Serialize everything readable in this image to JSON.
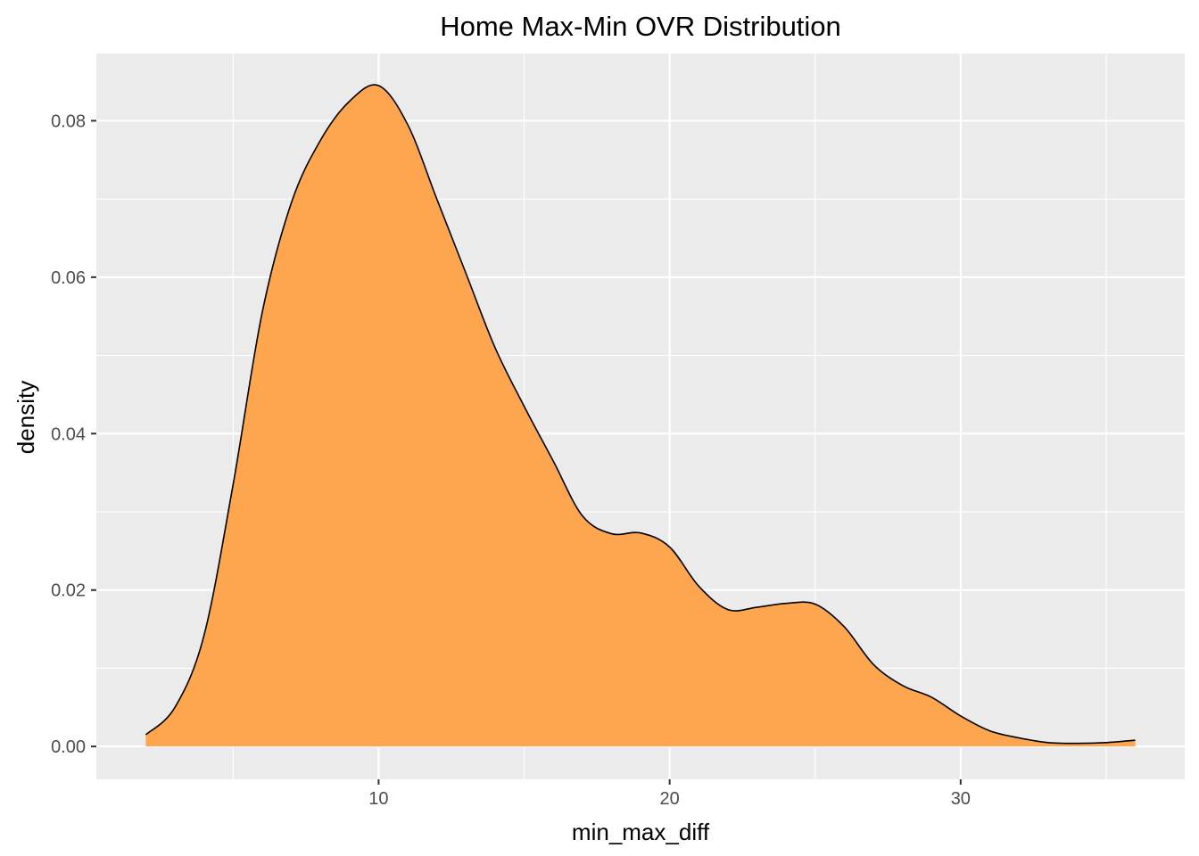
{
  "chart_data": {
    "type": "area",
    "title": "Home Max-Min OVR Distribution",
    "xlabel": "min_max_diff",
    "ylabel": "density",
    "xlim": [
      0.3,
      37.7
    ],
    "ylim": [
      -0.0042,
      0.0886
    ],
    "x_ticks": [
      10,
      20,
      30
    ],
    "x_tick_labels": [
      "10",
      "20",
      "30"
    ],
    "y_ticks": [
      0.0,
      0.02,
      0.04,
      0.06,
      0.08
    ],
    "y_tick_labels": [
      "0.00",
      "0.02",
      "0.04",
      "0.06",
      "0.08"
    ],
    "grid": true,
    "legend": "none",
    "fill_color": "#FDA54F",
    "line_color": "#000000",
    "panel_color": "#EBEBEB",
    "series": [
      {
        "x": [
          2,
          3,
          4,
          5,
          6,
          7,
          8,
          9,
          10,
          11,
          12,
          13,
          14,
          15,
          16,
          17,
          18,
          19,
          20,
          21,
          22,
          23,
          24,
          25,
          26,
          27,
          28,
          29,
          30,
          31,
          32,
          33,
          34,
          35,
          36
        ],
        "values": [
          0.0015,
          0.005,
          0.0142,
          0.0335,
          0.0555,
          0.0695,
          0.0775,
          0.0825,
          0.0845,
          0.0795,
          0.07,
          0.0605,
          0.051,
          0.0435,
          0.0365,
          0.0295,
          0.0272,
          0.0273,
          0.0255,
          0.0205,
          0.0175,
          0.0178,
          0.0183,
          0.0182,
          0.0153,
          0.0105,
          0.0078,
          0.0063,
          0.0039,
          0.002,
          0.0011,
          0.0005,
          0.0004,
          0.0005,
          0.0008
        ]
      }
    ]
  }
}
